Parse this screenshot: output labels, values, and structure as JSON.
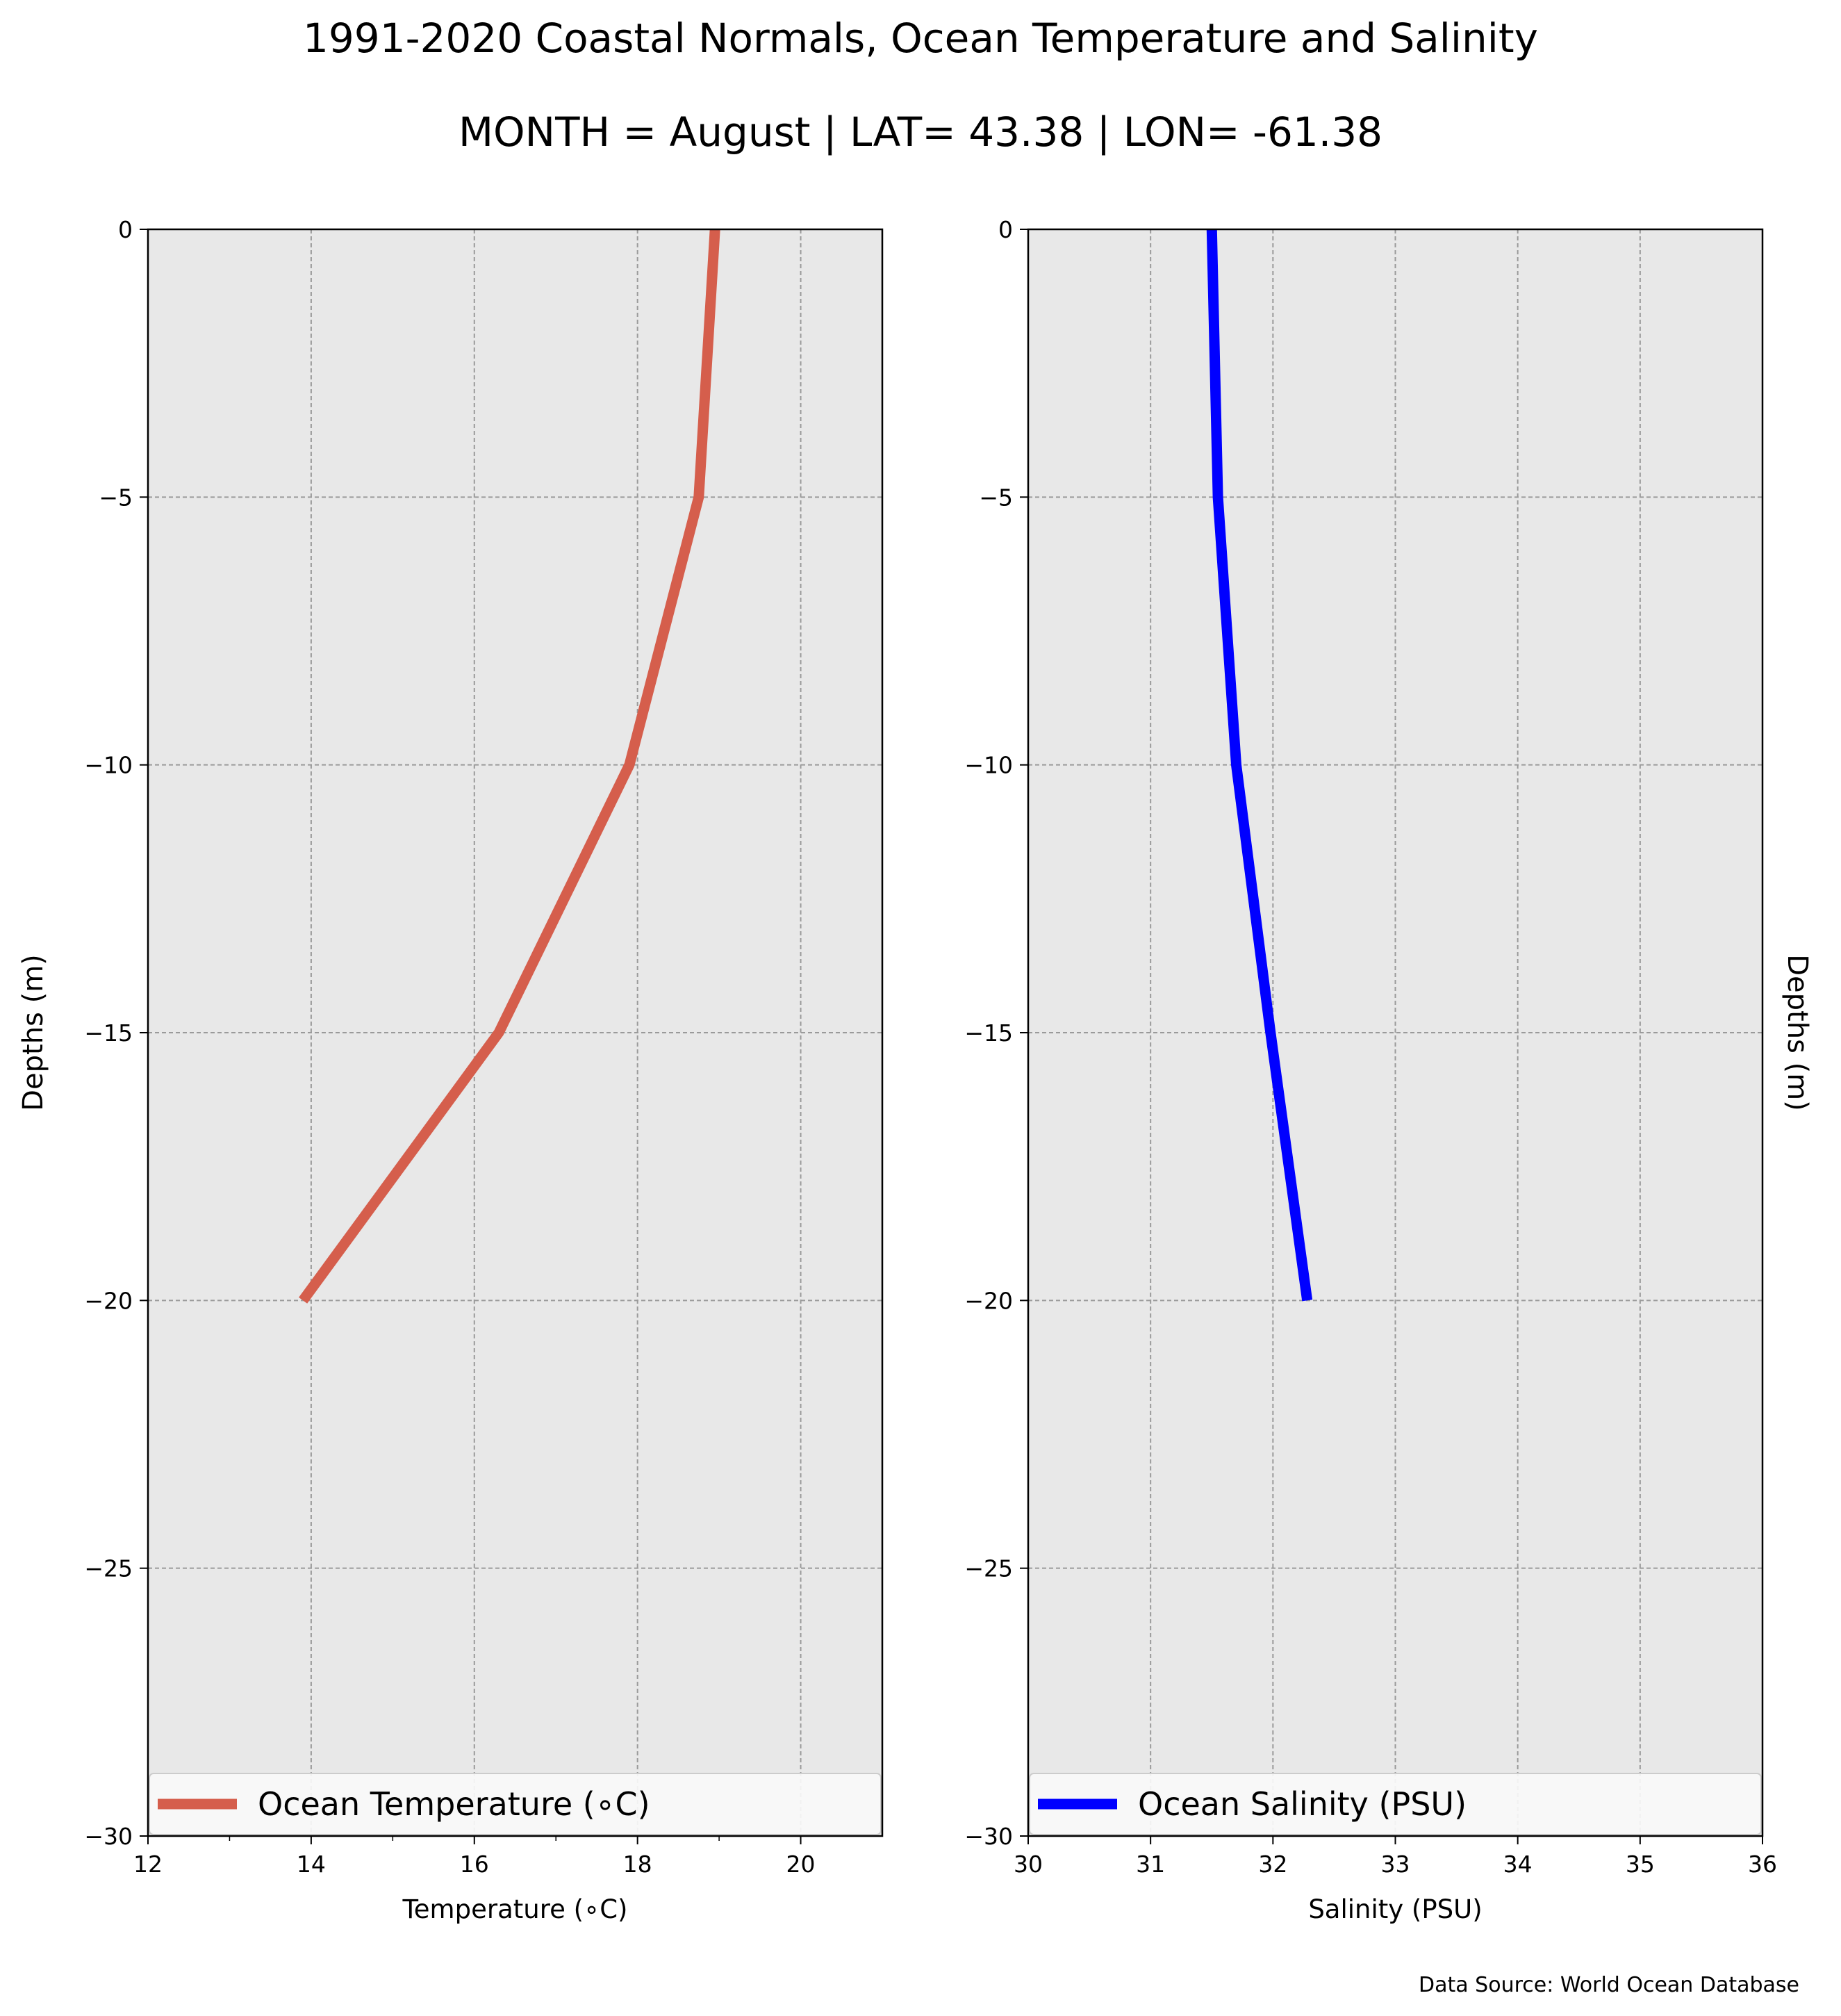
{
  "figure": {
    "title": "1991-2020 Coastal Normals, Ocean Temperature and Salinity",
    "subtitle": "MONTH = August | LAT= 43.38 | LON= -61.38",
    "source": "Data Source: World Ocean Database"
  },
  "chart_data": [
    {
      "type": "line",
      "xlabel": "Temperature (∘C)",
      "ylabel": "Depths (m)",
      "xlim": [
        12,
        21
      ],
      "ylim": [
        -30,
        0
      ],
      "xticks": [
        12,
        14,
        16,
        18,
        20
      ],
      "xtick_labels": [
        "12",
        "14",
        "16",
        "18",
        "20"
      ],
      "yticks": [
        0,
        -5,
        -10,
        -15,
        -20,
        -25,
        -30
      ],
      "ytick_labels": [
        "0",
        "−5",
        "−10",
        "−15",
        "−20",
        "−25",
        "−30"
      ],
      "grid": true,
      "background": "#e8e8e8",
      "legend_position": "bottom",
      "series": [
        {
          "name": "Ocean Temperature (∘C)",
          "color": "#d55e4c",
          "x": [
            18.95,
            18.75,
            17.9,
            16.3,
            13.9
          ],
          "y": [
            0,
            -5,
            -10,
            -15,
            -20
          ]
        }
      ]
    },
    {
      "type": "line",
      "xlabel": "Salinity (PSU)",
      "ylabel": "Depths (m)",
      "xlim": [
        30,
        36
      ],
      "ylim": [
        -30,
        0
      ],
      "xticks": [
        30,
        31,
        32,
        33,
        34,
        35,
        36
      ],
      "xtick_labels": [
        "30",
        "31",
        "32",
        "33",
        "34",
        "35",
        "36"
      ],
      "yticks": [
        0,
        -5,
        -10,
        -15,
        -20,
        -25,
        -30
      ],
      "ytick_labels": [
        "0",
        "−5",
        "−10",
        "−15",
        "−20",
        "−25",
        "−30"
      ],
      "grid": true,
      "background": "#e8e8e8",
      "legend_position": "bottom",
      "series": [
        {
          "name": "Ocean Salinity (PSU)",
          "color": "#0000ff",
          "x": [
            31.5,
            31.55,
            31.7,
            31.98,
            32.28
          ],
          "y": [
            0,
            -5,
            -10,
            -15,
            -20
          ]
        }
      ]
    }
  ]
}
